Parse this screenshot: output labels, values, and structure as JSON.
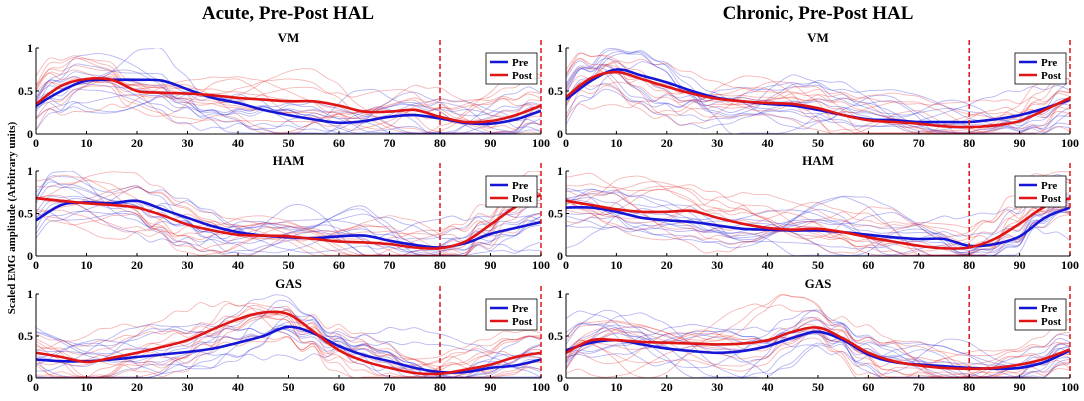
{
  "figure": {
    "columns": [
      "Acute, Pre-Post HAL",
      "Chronic, Pre-Post HAL"
    ],
    "ylabel": "Scaled EMG amplitude (Arbitrary units)"
  },
  "colors": {
    "pre": "#1515d6",
    "post": "#e01515",
    "divider": "#e01515",
    "axis": "#000000"
  },
  "chart_data": [
    {
      "type": "line",
      "panel": "acute-VM",
      "title": "VM",
      "x": [
        0,
        5,
        10,
        15,
        20,
        25,
        30,
        35,
        40,
        45,
        50,
        55,
        60,
        65,
        70,
        75,
        80,
        85,
        90,
        95,
        100
      ],
      "xlim": [
        0,
        100
      ],
      "ylim": [
        0,
        1
      ],
      "xticks": [
        0,
        10,
        20,
        30,
        40,
        50,
        60,
        70,
        80,
        90,
        100
      ],
      "yticks": [
        "0",
        "0.5",
        "1"
      ],
      "legend": [
        "Pre",
        "Post"
      ],
      "legend_position": "top-right",
      "divider_x": 80,
      "series": [
        {
          "name": "Pre",
          "values": [
            0.33,
            0.5,
            0.62,
            0.63,
            0.63,
            0.62,
            0.52,
            0.42,
            0.36,
            0.28,
            0.22,
            0.17,
            0.13,
            0.15,
            0.2,
            0.22,
            0.18,
            0.13,
            0.12,
            0.17,
            0.27
          ]
        },
        {
          "name": "Post",
          "values": [
            0.35,
            0.56,
            0.64,
            0.63,
            0.5,
            0.48,
            0.47,
            0.45,
            0.42,
            0.4,
            0.38,
            0.38,
            0.33,
            0.26,
            0.26,
            0.28,
            0.2,
            0.14,
            0.15,
            0.22,
            0.33
          ]
        }
      ]
    },
    {
      "type": "line",
      "panel": "chronic-VM",
      "title": "VM",
      "x": [
        0,
        5,
        10,
        15,
        20,
        25,
        30,
        35,
        40,
        45,
        50,
        55,
        60,
        65,
        70,
        75,
        80,
        85,
        90,
        95,
        100
      ],
      "xlim": [
        0,
        100
      ],
      "ylim": [
        0,
        1
      ],
      "xticks": [
        0,
        10,
        20,
        30,
        40,
        50,
        60,
        70,
        80,
        90,
        100
      ],
      "yticks": [
        "0",
        "0.5",
        "1"
      ],
      "legend": [
        "Pre",
        "Post"
      ],
      "legend_position": "top-right",
      "divider_x": 80,
      "series": [
        {
          "name": "Pre",
          "values": [
            0.4,
            0.62,
            0.75,
            0.68,
            0.6,
            0.5,
            0.42,
            0.38,
            0.35,
            0.33,
            0.28,
            0.22,
            0.17,
            0.16,
            0.14,
            0.14,
            0.14,
            0.17,
            0.22,
            0.3,
            0.4
          ]
        },
        {
          "name": "Post",
          "values": [
            0.43,
            0.65,
            0.72,
            0.64,
            0.55,
            0.47,
            0.41,
            0.38,
            0.36,
            0.35,
            0.3,
            0.22,
            0.16,
            0.14,
            0.12,
            0.09,
            0.08,
            0.1,
            0.15,
            0.28,
            0.42
          ]
        }
      ]
    },
    {
      "type": "line",
      "panel": "acute-HAM",
      "title": "HAM",
      "x": [
        0,
        5,
        10,
        15,
        20,
        25,
        30,
        35,
        40,
        45,
        50,
        55,
        60,
        65,
        70,
        75,
        80,
        85,
        90,
        95,
        100
      ],
      "xlim": [
        0,
        100
      ],
      "ylim": [
        0,
        1
      ],
      "xticks": [
        0,
        10,
        20,
        30,
        40,
        50,
        60,
        70,
        80,
        90,
        100
      ],
      "yticks": [
        "0",
        "0.5",
        "1"
      ],
      "legend": [
        "Pre",
        "Post"
      ],
      "legend_position": "top-right",
      "divider_x": 80,
      "series": [
        {
          "name": "Pre",
          "values": [
            0.42,
            0.6,
            0.63,
            0.62,
            0.65,
            0.55,
            0.45,
            0.35,
            0.28,
            0.24,
            0.22,
            0.21,
            0.23,
            0.24,
            0.18,
            0.13,
            0.1,
            0.15,
            0.26,
            0.33,
            0.4
          ]
        },
        {
          "name": "Post",
          "values": [
            0.68,
            0.65,
            0.62,
            0.6,
            0.57,
            0.48,
            0.37,
            0.3,
            0.25,
            0.24,
            0.23,
            0.2,
            0.17,
            0.16,
            0.14,
            0.1,
            0.09,
            0.17,
            0.37,
            0.58,
            0.72
          ]
        }
      ]
    },
    {
      "type": "line",
      "panel": "chronic-HAM",
      "title": "HAM",
      "x": [
        0,
        5,
        10,
        15,
        20,
        25,
        30,
        35,
        40,
        45,
        50,
        55,
        60,
        65,
        70,
        75,
        80,
        85,
        90,
        95,
        100
      ],
      "xlim": [
        0,
        100
      ],
      "ylim": [
        0,
        1
      ],
      "xticks": [
        0,
        10,
        20,
        30,
        40,
        50,
        60,
        70,
        80,
        90,
        100
      ],
      "yticks": [
        "0",
        "0.5",
        "1"
      ],
      "legend": [
        "Pre",
        "Post"
      ],
      "legend_position": "top-right",
      "divider_x": 80,
      "series": [
        {
          "name": "Pre",
          "values": [
            0.57,
            0.57,
            0.52,
            0.45,
            0.42,
            0.4,
            0.36,
            0.32,
            0.31,
            0.3,
            0.3,
            0.28,
            0.25,
            0.22,
            0.2,
            0.2,
            0.12,
            0.14,
            0.23,
            0.45,
            0.57
          ]
        },
        {
          "name": "Post",
          "values": [
            0.65,
            0.6,
            0.55,
            0.52,
            0.52,
            0.53,
            0.45,
            0.38,
            0.33,
            0.31,
            0.32,
            0.28,
            0.22,
            0.17,
            0.12,
            0.09,
            0.1,
            0.2,
            0.38,
            0.58,
            0.68
          ]
        }
      ]
    },
    {
      "type": "line",
      "panel": "acute-GAS",
      "title": "GAS",
      "x": [
        0,
        5,
        10,
        15,
        20,
        25,
        30,
        35,
        40,
        45,
        50,
        55,
        60,
        65,
        70,
        75,
        80,
        85,
        90,
        95,
        100
      ],
      "xlim": [
        0,
        100
      ],
      "ylim": [
        0,
        1
      ],
      "xticks": [
        0,
        10,
        20,
        30,
        40,
        50,
        60,
        70,
        80,
        90,
        100
      ],
      "yticks": [
        "0",
        "0.5",
        "1"
      ],
      "legend": [
        "Pre",
        "Post"
      ],
      "legend_position": "top-right",
      "divider_x": 80,
      "series": [
        {
          "name": "Pre",
          "values": [
            0.22,
            0.2,
            0.2,
            0.22,
            0.25,
            0.28,
            0.31,
            0.35,
            0.42,
            0.5,
            0.61,
            0.53,
            0.38,
            0.27,
            0.2,
            0.12,
            0.07,
            0.07,
            0.12,
            0.15,
            0.22
          ]
        },
        {
          "name": "Post",
          "values": [
            0.3,
            0.25,
            0.19,
            0.24,
            0.3,
            0.37,
            0.45,
            0.58,
            0.7,
            0.78,
            0.76,
            0.55,
            0.33,
            0.2,
            0.12,
            0.06,
            0.05,
            0.1,
            0.16,
            0.25,
            0.3
          ]
        }
      ]
    },
    {
      "type": "line",
      "panel": "chronic-GAS",
      "title": "GAS",
      "x": [
        0,
        5,
        10,
        15,
        20,
        25,
        30,
        35,
        40,
        45,
        50,
        55,
        60,
        65,
        70,
        75,
        80,
        85,
        90,
        95,
        100
      ],
      "xlim": [
        0,
        100
      ],
      "ylim": [
        0,
        1
      ],
      "xticks": [
        0,
        10,
        20,
        30,
        40,
        50,
        60,
        70,
        80,
        90,
        100
      ],
      "yticks": [
        "0",
        "0.5",
        "1"
      ],
      "legend": [
        "Pre",
        "Post"
      ],
      "legend_position": "top-right",
      "divider_x": 80,
      "series": [
        {
          "name": "Pre",
          "values": [
            0.33,
            0.42,
            0.45,
            0.4,
            0.35,
            0.32,
            0.3,
            0.32,
            0.38,
            0.48,
            0.55,
            0.45,
            0.28,
            0.19,
            0.16,
            0.14,
            0.12,
            0.11,
            0.12,
            0.19,
            0.33
          ]
        },
        {
          "name": "Post",
          "values": [
            0.3,
            0.45,
            0.45,
            0.43,
            0.42,
            0.41,
            0.4,
            0.41,
            0.45,
            0.55,
            0.6,
            0.47,
            0.3,
            0.2,
            0.15,
            0.12,
            0.11,
            0.12,
            0.16,
            0.23,
            0.34
          ]
        }
      ]
    }
  ]
}
